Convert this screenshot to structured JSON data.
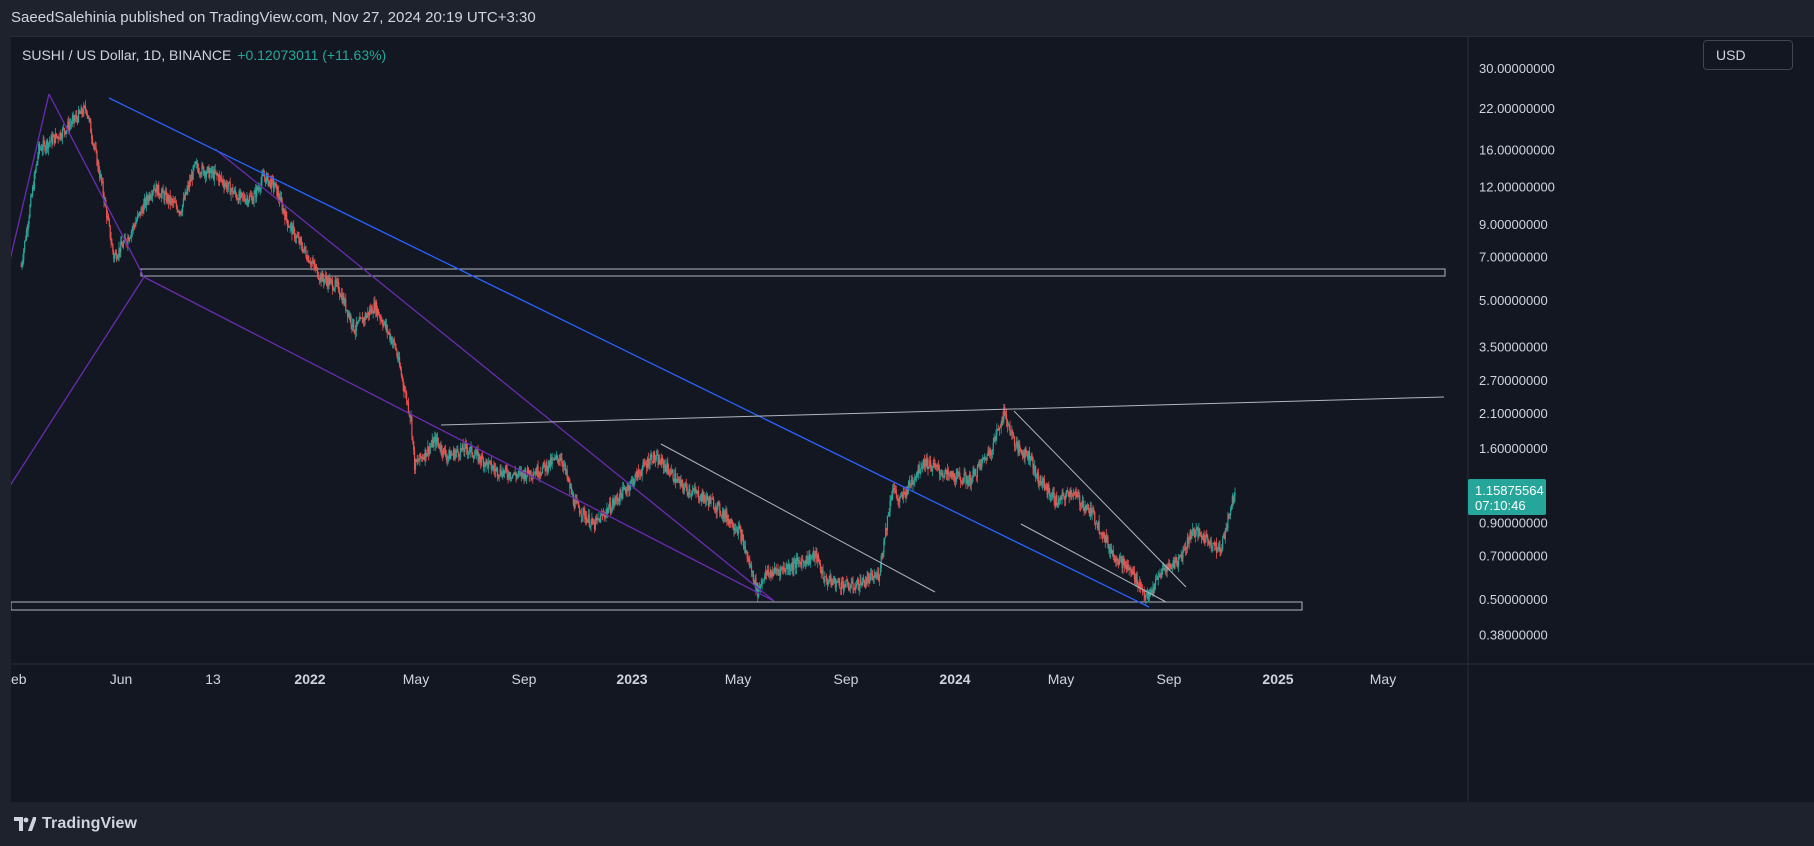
{
  "header": {
    "publisher_line": "SaeedSalehinia published on TradingView.com, Nov 27, 2024 20:19 UTC+3:30"
  },
  "legend": {
    "symbol": "SUSHI / US Dollar, 1D, BINANCE",
    "change": "+0.12073011 (+11.63%)"
  },
  "currency_button": "USD",
  "price_label": {
    "price": "1.15875564",
    "countdown": "07:10:46",
    "color": "#26a69a"
  },
  "footer": {
    "brand": "TradingView",
    "logo_icon": "tradingview-logo-icon"
  },
  "colors": {
    "background": "#131722",
    "up": "#26a69a",
    "down": "#ef5350",
    "trendline_blue": "#2962ff",
    "trendline_purple": "#6a2cb0",
    "trendline_gray": "#b2b5be"
  },
  "chart_data": {
    "type": "candlestick",
    "y_scale": "log",
    "y_ticks": [
      "30.00000000",
      "22.00000000",
      "16.00000000",
      "12.00000000",
      "9.00000000",
      "7.00000000",
      "5.00000000",
      "3.50000000",
      "2.70000000",
      "2.10000000",
      "1.60000000",
      "0.90000000",
      "0.70000000",
      "0.50000000",
      "0.38000000"
    ],
    "x_ticks": [
      "eb",
      "Jun",
      "13",
      "2022",
      "May",
      "Sep",
      "2023",
      "May",
      "Sep",
      "2024",
      "May",
      "Sep",
      "2025",
      "May"
    ],
    "x_ticks_bold": [
      "2022",
      "2023",
      "2024",
      "2025"
    ],
    "series": [
      {
        "x": [
          "2021-02-20",
          "2021-03-12",
          "2021-04-05",
          "2021-05-05",
          "2021-05-23",
          "2021-06-05",
          "2021-06-20",
          "2021-07-20",
          "2021-08-20",
          "2021-09-05",
          "2021-10-01",
          "2021-10-25",
          "2021-11-10",
          "2021-11-22",
          "2021-12-05",
          "2021-12-20",
          "2022-01-05",
          "2022-01-25",
          "2022-02-15",
          "2022-03-05",
          "2022-03-28",
          "2022-04-20",
          "2022-05-08",
          "2022-05-12",
          "2022-06-05",
          "2022-06-18",
          "2022-07-10",
          "2022-08-12",
          "2022-09-05",
          "2022-10-01",
          "2022-10-25",
          "2022-11-09",
          "2022-12-01",
          "2023-01-15",
          "2023-02-05",
          "2023-02-20",
          "2023-03-10",
          "2023-04-15",
          "2023-05-15",
          "2023-06-05",
          "2023-06-12",
          "2023-07-15",
          "2023-08-10",
          "2023-08-20",
          "2023-09-20",
          "2023-10-20",
          "2023-11-05",
          "2023-11-12",
          "2023-12-10",
          "2024-01-05",
          "2024-02-01",
          "2024-02-25",
          "2024-03-10",
          "2024-03-25",
          "2024-04-10",
          "2024-04-15",
          "2024-05-10",
          "2024-05-25",
          "2024-06-20",
          "2024-07-10",
          "2024-08-05",
          "2024-08-20",
          "2024-09-05",
          "2024-09-25",
          "2024-10-10",
          "2024-10-30",
          "2024-11-10",
          "2024-11-27"
        ],
        "close": [
          6.5,
          16,
          18,
          22,
          12,
          7,
          8,
          12,
          10,
          14,
          13,
          11,
          11,
          13,
          12,
          9,
          7.5,
          6,
          5.5,
          4,
          4.8,
          3.5,
          2.0,
          1.4,
          1.7,
          1.5,
          1.6,
          1.35,
          1.3,
          1.35,
          1.5,
          1.05,
          0.88,
          1.25,
          1.5,
          1.4,
          1.2,
          1.05,
          0.85,
          0.53,
          0.6,
          0.65,
          0.7,
          0.58,
          0.55,
          0.6,
          1.2,
          1.05,
          1.45,
          1.3,
          1.25,
          1.6,
          2.1,
          1.6,
          1.5,
          1.3,
          1.05,
          1.15,
          0.95,
          0.72,
          0.6,
          0.5,
          0.62,
          0.68,
          0.85,
          0.78,
          0.72,
          1.16
        ]
      }
    ]
  }
}
